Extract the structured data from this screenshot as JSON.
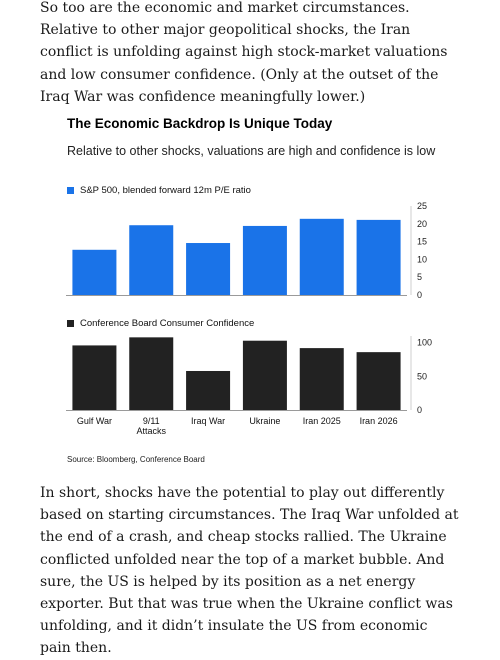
{
  "article": {
    "para_top": "So too are the economic and market circumstances. Relative to other major geopolitical shocks, the Iran conflict is unfolding against high stock-market valuations and low consumer confidence. (Only at the outset of the Iraq War was confidence meaningfully lower.)",
    "para_bottom": "In short, shocks have the potential to play out differently based on starting circumstances. The Iraq War unfolded at the end of a crash, and cheap stocks rallied. The Ukraine conflicted unfolded near the top of a market bubble. And sure, the US is helped by its position as a net energy exporter. But that was true when the Ukraine conflict was unfolding, and it didn’t insulate the US from economic pain then."
  },
  "chart_data": {
    "type": "bar",
    "title": "The Economic Backdrop Is Unique Today",
    "subtitle": "Relative to other shocks, valuations are high and confidence is low",
    "source": "Source: Bloomberg, Conference Board",
    "categories": [
      {
        "lines": [
          "Gulf War"
        ]
      },
      {
        "lines": [
          "9/11",
          "Attacks"
        ]
      },
      {
        "lines": [
          "Iraq War"
        ]
      },
      {
        "lines": [
          "Ukraine"
        ]
      },
      {
        "lines": [
          "Iran 2025"
        ]
      },
      {
        "lines": [
          "Iran 2026"
        ]
      }
    ],
    "panels": [
      {
        "name": "S&P 500, blended forward 12m P/E ratio",
        "color": "#1a73e8",
        "values": [
          12.7,
          19.6,
          14.6,
          19.4,
          21.4,
          21.1
        ],
        "ylim": [
          0,
          25
        ],
        "ticks": [
          0,
          5,
          10,
          15,
          20,
          25
        ]
      },
      {
        "name": "Conference Board Consumer Confidence",
        "color": "#222222",
        "values": [
          96,
          108,
          58,
          103,
          92,
          86
        ],
        "ylim": [
          0,
          110
        ],
        "ticks": [
          0,
          50,
          100
        ]
      }
    ]
  }
}
